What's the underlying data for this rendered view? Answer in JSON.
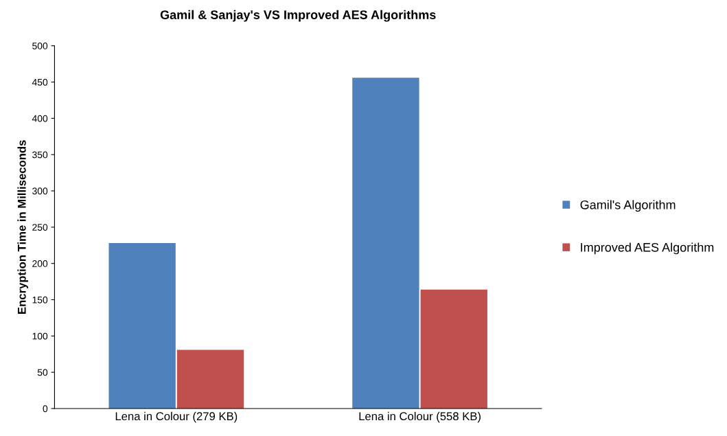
{
  "chart_data": {
    "type": "bar",
    "title": "Gamil & Sanjay's VS Improved AES Algorithms",
    "ylabel": "Encryption Time in Milliseconds",
    "categories": [
      "Lena in Colour (279 KB)",
      "Lena in Colour (558 KB)"
    ],
    "series": [
      {
        "name": "Gamil's Algorithm",
        "color": "#4f81bd",
        "values": [
          228,
          456
        ]
      },
      {
        "name": "Improved AES Algorithm",
        "color": "#c0504d",
        "values": [
          81,
          164
        ]
      }
    ],
    "ylim": [
      0,
      500
    ],
    "yticks": [
      0,
      50,
      100,
      150,
      200,
      250,
      300,
      350,
      400,
      450,
      500
    ],
    "grid": false,
    "legend": "right"
  }
}
